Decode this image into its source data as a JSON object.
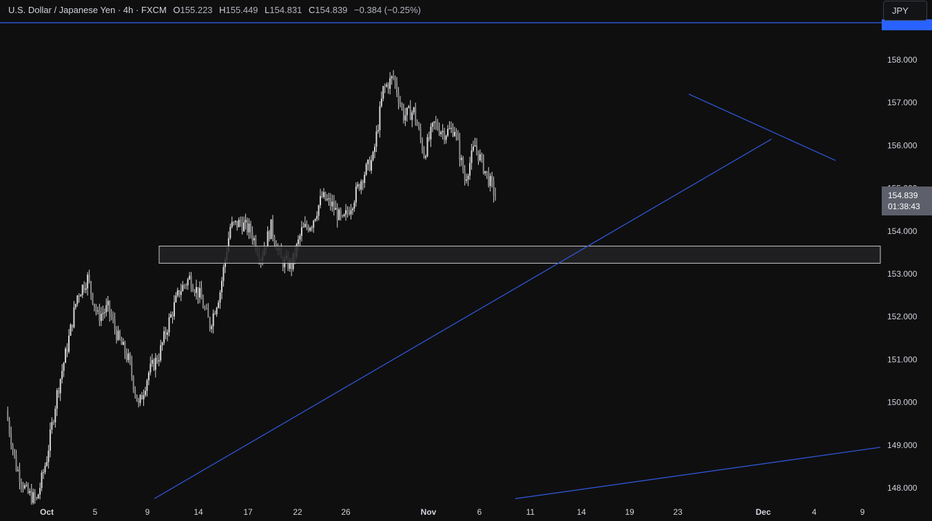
{
  "header": {
    "symbol": "U.S. Dollar / Japanese Yen · 4h · FXCM",
    "open_key": "O",
    "open_val": "155.223",
    "high_key": "H",
    "high_val": "155.449",
    "low_key": "L",
    "low_val": "154.831",
    "close_key": "C",
    "close_val": "154.839",
    "change": "−0.384 (−0.25%)"
  },
  "currency_button": "JPY",
  "price_badge": {
    "price": "154.839",
    "countdown": "01:38:43"
  },
  "colors": {
    "background": "#0f0f10",
    "candle": "#d9d9d9",
    "trendline": "#2f55d4",
    "zone_border": "#c9c9c9",
    "zone_fill": "#222224",
    "text": "#d1d4dc"
  },
  "chart_data": {
    "type": "candlestick",
    "x_tick_labels": [
      "Oct",
      "5",
      "9",
      "14",
      "17",
      "22",
      "26",
      "Nov",
      "6",
      "11",
      "14",
      "19",
      "23",
      "Dec",
      "4",
      "9"
    ],
    "y_tick_labels": [
      "158.000",
      "157.000",
      "156.000",
      "155.000",
      "154.000",
      "153.000",
      "152.000",
      "151.000",
      "150.000",
      "149.000",
      "148.000"
    ],
    "ylim": [
      147.75,
      159.3
    ],
    "grid": false,
    "close_path": [
      {
        "date": "Sep 30",
        "close": 149.8
      },
      {
        "date": "Oct 1",
        "close": 148.5
      },
      {
        "date": "Oct 2",
        "close": 147.9
      },
      {
        "date": "Oct 3",
        "close": 147.7
      },
      {
        "date": "Oct 4",
        "close": 148.7
      },
      {
        "date": "Oct 7",
        "close": 150.2
      },
      {
        "date": "Oct 8",
        "close": 151.3
      },
      {
        "date": "Oct 9",
        "close": 152.5
      },
      {
        "date": "Oct 10",
        "close": 152.9
      },
      {
        "date": "Oct 11",
        "close": 152.0
      },
      {
        "date": "Oct 14",
        "close": 152.2
      },
      {
        "date": "Oct 15",
        "close": 151.5
      },
      {
        "date": "Oct 16",
        "close": 151.0
      },
      {
        "date": "Oct 17",
        "close": 149.9
      },
      {
        "date": "Oct 18",
        "close": 150.7
      },
      {
        "date": "Oct 21",
        "close": 151.1
      },
      {
        "date": "Oct 22",
        "close": 151.9
      },
      {
        "date": "Oct 23",
        "close": 152.6
      },
      {
        "date": "Oct 24",
        "close": 152.9
      },
      {
        "date": "Oct 25",
        "close": 152.5
      },
      {
        "date": "Oct 28",
        "close": 151.8
      },
      {
        "date": "Oct 29",
        "close": 152.6
      },
      {
        "date": "Oct 30",
        "close": 154.1
      },
      {
        "date": "Oct 31",
        "close": 154.2
      },
      {
        "date": "Nov 1",
        "close": 154.0
      },
      {
        "date": "Nov 4",
        "close": 153.4
      },
      {
        "date": "Nov 5",
        "close": 154.1
      },
      {
        "date": "Nov 6",
        "close": 153.3
      },
      {
        "date": "Nov 7",
        "close": 153.2
      },
      {
        "date": "Nov 8",
        "close": 154.0
      },
      {
        "date": "Nov 11",
        "close": 154.2
      },
      {
        "date": "Nov 12",
        "close": 154.8
      },
      {
        "date": "Nov 13",
        "close": 154.6
      },
      {
        "date": "Nov 14",
        "close": 154.2
      },
      {
        "date": "Nov 15",
        "close": 154.7
      },
      {
        "date": "Nov 18",
        "close": 155.3
      },
      {
        "date": "Nov 19",
        "close": 155.7
      },
      {
        "date": "Nov 20",
        "close": 157.3
      },
      {
        "date": "Nov 21",
        "close": 157.6
      },
      {
        "date": "Nov 22",
        "close": 156.7
      },
      {
        "date": "Nov 25",
        "close": 156.8
      },
      {
        "date": "Nov 26",
        "close": 155.8
      },
      {
        "date": "Nov 27",
        "close": 156.5
      },
      {
        "date": "Nov 28",
        "close": 156.3
      },
      {
        "date": "Nov 29",
        "close": 156.4
      },
      {
        "date": "Dec 2",
        "close": 155.2
      },
      {
        "date": "Dec 3",
        "close": 156.0
      },
      {
        "date": "Dec 4",
        "close": 155.4
      },
      {
        "date": "Dec 5",
        "close": 154.84
      }
    ],
    "support_zone": {
      "low": 153.25,
      "high": 153.65,
      "from": "Oct 9",
      "to": "Dec 9"
    },
    "trendlines": [
      {
        "name": "rising-trendline",
        "from": {
          "date": "Oct 9",
          "price": 147.75
        },
        "to": {
          "date": "Dec 2",
          "price": 156.15
        }
      },
      {
        "name": "falling-trendline",
        "from": {
          "date": "Nov 24",
          "price": 157.2
        },
        "to": {
          "date": "Dec 6",
          "price": 155.65
        }
      },
      {
        "name": "lower-trendline",
        "from": {
          "date": "Nov 9",
          "price": 147.75
        },
        "to": {
          "date": "Dec 9",
          "price": 148.95
        }
      }
    ]
  }
}
